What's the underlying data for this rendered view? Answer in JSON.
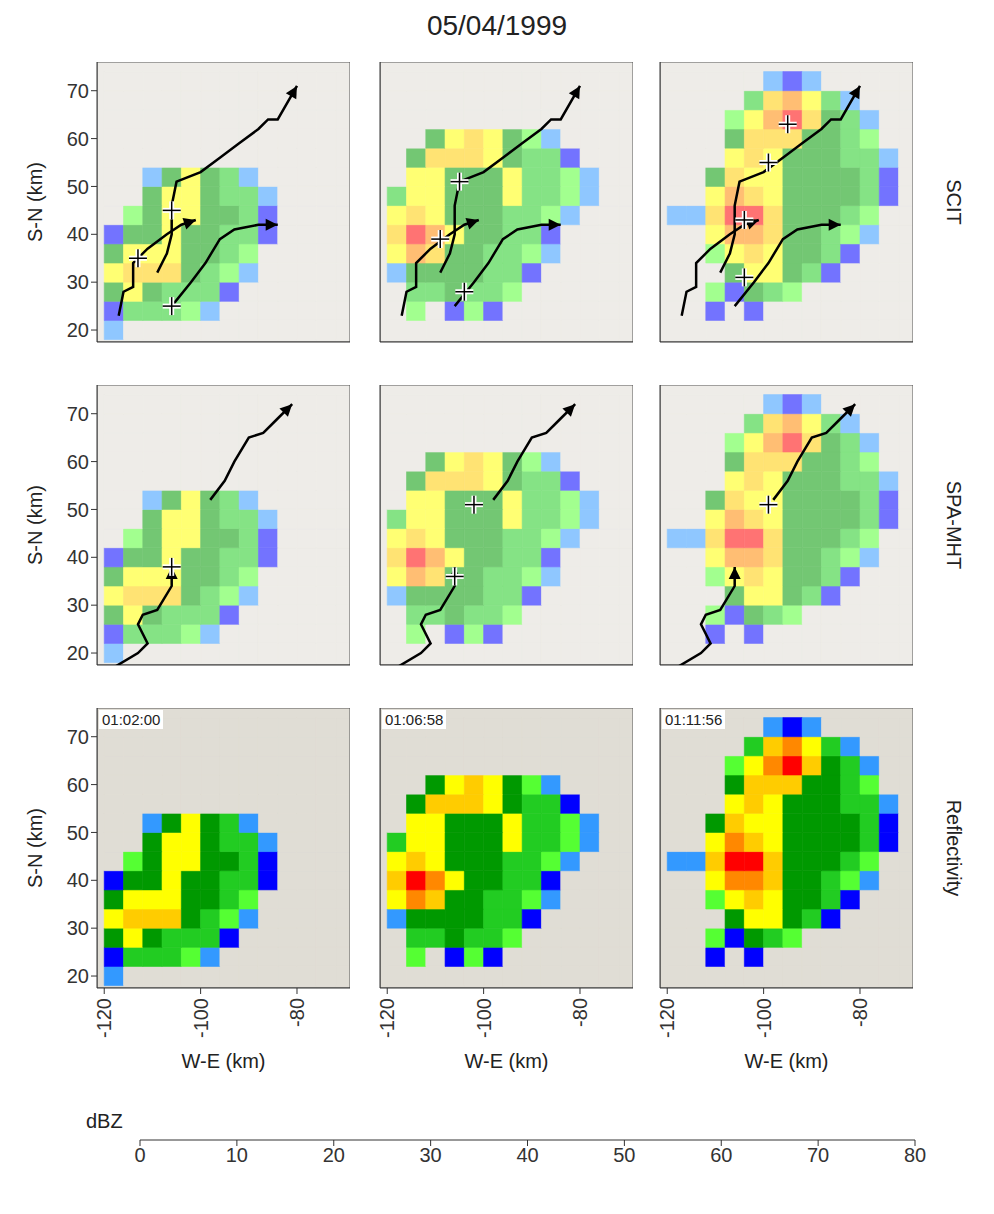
{
  "chart_data": {
    "type": "heatmap",
    "title": "05/04/1999",
    "xlabel": "W-E (km)",
    "ylabel": "S-N (km)",
    "xlim": [
      -121.5,
      -69
    ],
    "ylim": [
      17.5,
      76
    ],
    "xticks": [
      -120,
      -100,
      -80
    ],
    "yticks": [
      20,
      30,
      40,
      50,
      60,
      70
    ],
    "x": [
      -118,
      -114,
      -110,
      -106,
      -102,
      -98,
      -94,
      -90,
      -86,
      -82,
      -78,
      -74,
      -70
    ],
    "y": [
      20,
      24,
      28,
      32,
      36,
      40,
      44,
      48,
      52,
      56,
      60,
      64,
      68,
      72
    ],
    "times": [
      "01:02:00",
      "01:06:58",
      "01:11:56"
    ],
    "cells": [
      [
        [
          10,
          0,
          0,
          0,
          0,
          0,
          0,
          0,
          0,
          0,
          0,
          0,
          0
        ],
        [
          15,
          25,
          28,
          25,
          20,
          10,
          0,
          0,
          0,
          0,
          0,
          0,
          0
        ],
        [
          30,
          35,
          30,
          28,
          28,
          25,
          15,
          0,
          0,
          0,
          0,
          0,
          0
        ],
        [
          38,
          42,
          40,
          42,
          30,
          28,
          20,
          10,
          0,
          0,
          0,
          0,
          0
        ],
        [
          30,
          38,
          38,
          38,
          30,
          30,
          25,
          20,
          0,
          0,
          0,
          0,
          0
        ],
        [
          15,
          30,
          32,
          38,
          33,
          30,
          28,
          25,
          15,
          0,
          0,
          0,
          0
        ],
        [
          0,
          20,
          30,
          36,
          38,
          30,
          30,
          25,
          15,
          0,
          0,
          0,
          0
        ],
        [
          0,
          0,
          30,
          38,
          38,
          30,
          28,
          25,
          10,
          0,
          0,
          0,
          0
        ],
        [
          0,
          0,
          10,
          30,
          35,
          30,
          25,
          10,
          0,
          0,
          0,
          0,
          0
        ],
        [
          0,
          0,
          0,
          0,
          0,
          0,
          0,
          0,
          0,
          0,
          0,
          0,
          0
        ],
        [
          0,
          0,
          0,
          0,
          0,
          0,
          0,
          0,
          0,
          0,
          0,
          0,
          0
        ],
        [
          0,
          0,
          0,
          0,
          0,
          0,
          0,
          0,
          0,
          0,
          0,
          0,
          0
        ],
        [
          0,
          0,
          0,
          0,
          0,
          0,
          0,
          0,
          0,
          0,
          0,
          0,
          0
        ],
        [
          0,
          0,
          0,
          0,
          0,
          0,
          0,
          0,
          0,
          0,
          0,
          0,
          0
        ]
      ],
      [
        [
          0,
          0,
          0,
          0,
          0,
          0,
          0,
          0,
          0,
          0,
          0,
          0,
          0
        ],
        [
          0,
          20,
          0,
          15,
          20,
          15,
          0,
          0,
          0,
          0,
          0,
          0,
          0
        ],
        [
          0,
          25,
          25,
          30,
          25,
          25,
          20,
          0,
          0,
          0,
          0,
          0,
          0
        ],
        [
          10,
          30,
          30,
          32,
          30,
          28,
          25,
          15,
          0,
          0,
          0,
          0,
          0
        ],
        [
          38,
          45,
          42,
          32,
          30,
          28,
          25,
          20,
          10,
          0,
          0,
          0,
          0
        ],
        [
          40,
          50,
          45,
          35,
          30,
          30,
          28,
          25,
          15,
          0,
          0,
          0,
          0
        ],
        [
          35,
          42,
          38,
          33,
          30,
          30,
          28,
          25,
          20,
          10,
          0,
          0,
          0
        ],
        [
          25,
          38,
          35,
          30,
          30,
          33,
          38,
          28,
          25,
          20,
          10,
          0,
          0
        ],
        [
          0,
          35,
          38,
          32,
          30,
          33,
          35,
          28,
          25,
          20,
          10,
          0,
          0
        ],
        [
          0,
          30,
          42,
          40,
          40,
          38,
          30,
          28,
          25,
          15,
          0,
          0,
          0
        ],
        [
          0,
          0,
          30,
          38,
          40,
          35,
          30,
          20,
          10,
          0,
          0,
          0,
          0
        ],
        [
          0,
          0,
          0,
          0,
          0,
          0,
          0,
          0,
          0,
          0,
          0,
          0,
          0
        ],
        [
          0,
          0,
          0,
          0,
          0,
          0,
          0,
          0,
          0,
          0,
          0,
          0,
          0
        ],
        [
          0,
          0,
          0,
          0,
          0,
          0,
          0,
          0,
          0,
          0,
          0,
          0,
          0
        ]
      ],
      [
        [
          0,
          0,
          0,
          0,
          0,
          0,
          0,
          0,
          0,
          0,
          0,
          0,
          0
        ],
        [
          0,
          0,
          15,
          0,
          15,
          0,
          0,
          0,
          0,
          0,
          0,
          0,
          0
        ],
        [
          0,
          0,
          20,
          15,
          30,
          28,
          20,
          0,
          0,
          0,
          0,
          0,
          0
        ],
        [
          0,
          0,
          0,
          30,
          38,
          38,
          30,
          25,
          15,
          0,
          0,
          0,
          0
        ],
        [
          0,
          0,
          20,
          38,
          42,
          38,
          32,
          30,
          25,
          15,
          0,
          0,
          0
        ],
        [
          0,
          0,
          35,
          45,
          48,
          40,
          33,
          30,
          28,
          20,
          10,
          0,
          0
        ],
        [
          10,
          10,
          40,
          50,
          52,
          40,
          33,
          30,
          30,
          28,
          20,
          0,
          0
        ],
        [
          0,
          0,
          38,
          45,
          42,
          35,
          33,
          30,
          30,
          30,
          25,
          15,
          0
        ],
        [
          0,
          0,
          30,
          42,
          38,
          35,
          32,
          30,
          30,
          30,
          25,
          15,
          0
        ],
        [
          0,
          0,
          0,
          35,
          42,
          38,
          32,
          30,
          30,
          28,
          25,
          10,
          0
        ],
        [
          0,
          0,
          0,
          30,
          42,
          42,
          40,
          32,
          30,
          28,
          20,
          0,
          0
        ],
        [
          0,
          0,
          0,
          20,
          38,
          48,
          50,
          40,
          30,
          25,
          10,
          0,
          0
        ],
        [
          0,
          0,
          0,
          0,
          25,
          40,
          48,
          35,
          25,
          10,
          0,
          0,
          0
        ],
        [
          0,
          0,
          0,
          0,
          0,
          10,
          15,
          10,
          0,
          0,
          0,
          0,
          0
        ]
      ]
    ],
    "rows": [
      {
        "label": "SCIT",
        "color": "#000000",
        "marker": "crosshair",
        "tracks": [
          [
            [
              -117,
              23
            ],
            [
              -116,
              28
            ],
            [
              -114,
              29
            ],
            [
              -114,
              34
            ],
            [
              -111,
              37
            ],
            [
              -107,
              40
            ],
            [
              -104,
              42
            ],
            [
              -101,
              43
            ]
          ],
          [
            [
              -109,
              32
            ],
            [
              -107,
              36
            ],
            [
              -106,
              40
            ],
            [
              -106,
              46
            ],
            [
              -105,
              51
            ],
            [
              -100,
              53
            ],
            [
              -96,
              56
            ],
            [
              -92,
              59
            ],
            [
              -88,
              62
            ],
            [
              -86,
              64
            ],
            [
              -84,
              64
            ],
            [
              -80,
              71
            ]
          ],
          [
            [
              -106,
              25
            ],
            [
              -102,
              30
            ],
            [
              -99,
              34
            ],
            [
              -96,
              39
            ],
            [
              -93,
              41
            ],
            [
              -88,
              42
            ],
            [
              -84,
              42
            ]
          ]
        ],
        "positions": [
          [
            [
              -113,
              35
            ],
            [
              -106,
              45
            ],
            [
              -106,
              25
            ]
          ],
          [
            [
              -109,
              39
            ],
            [
              -105,
              51
            ],
            [
              -104,
              28
            ]
          ],
          [
            [
              -104,
              43
            ],
            [
              -99,
              55
            ],
            [
              -95,
              63
            ],
            [
              -104,
              31
            ]
          ]
        ]
      },
      {
        "label": "SPA-MHT",
        "color": "#000000",
        "marker": "crosshair",
        "tracks": [
          [
            [
              -118,
              17
            ],
            [
              -113,
              20
            ],
            [
              -111,
              22
            ],
            [
              -113,
              26
            ],
            [
              -112,
              28
            ],
            [
              -109,
              29
            ],
            [
              -106,
              34
            ],
            [
              -106,
              38
            ]
          ],
          [
            [
              -98,
              52
            ],
            [
              -95,
              56
            ],
            [
              -93,
              60
            ],
            [
              -90,
              65
            ],
            [
              -87,
              66
            ],
            [
              -84,
              69
            ],
            [
              -81,
              72
            ]
          ]
        ],
        "positions": [
          [
            [
              -106,
              38
            ]
          ],
          [
            [
              -106,
              36
            ],
            [
              -102,
              51
            ]
          ],
          [
            [
              -99,
              51
            ]
          ]
        ]
      },
      {
        "label": "Reflectivity"
      }
    ],
    "colorbar": {
      "label": "dBZ",
      "range": [
        0,
        80
      ],
      "ticks": [
        0,
        10,
        20,
        30,
        40,
        50,
        60,
        70,
        80
      ],
      "colors": [
        "#e0ddd5",
        "#33ffff",
        "#3399ff",
        "#0000ff",
        "#55ff33",
        "#22cc22",
        "#009900",
        "#ffff00",
        "#ffcc00",
        "#ff8800",
        "#ff0000",
        "#cc0000",
        "#880000",
        "#ff00cc",
        "#9955ff",
        "#ffffff"
      ]
    }
  }
}
